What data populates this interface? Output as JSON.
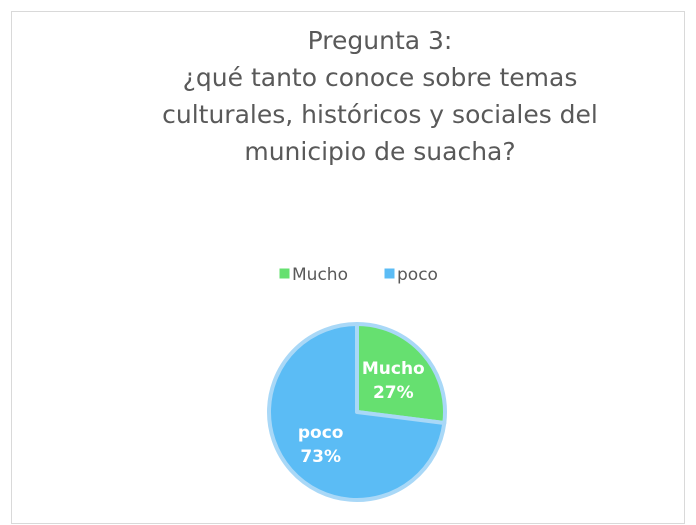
{
  "chart_data": {
    "type": "pie",
    "title": [
      "Pregunta 3:",
      "¿qué tanto conoce sobre temas",
      "culturales, históricos y sociales del",
      "municipio de suacha?"
    ],
    "categories": [
      "Mucho",
      "poco"
    ],
    "values": [
      27,
      73
    ],
    "value_labels": [
      "27%",
      "73%"
    ],
    "colors": [
      "#66e070",
      "#5bbcf5"
    ],
    "legend": "top"
  }
}
